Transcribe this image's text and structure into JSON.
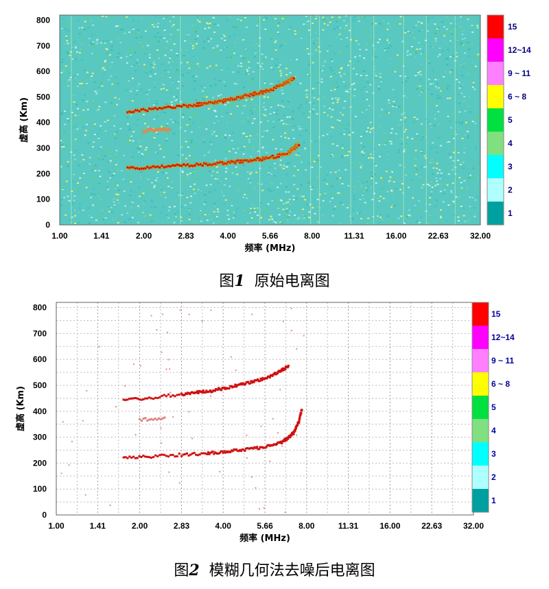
{
  "chart_data": [
    {
      "type": "heatmap",
      "panel": "original",
      "caption_prefix": "图",
      "caption_number": "1",
      "caption_title": "原始电离图",
      "xlabel": "频率 (MHz)",
      "ylabel": "虚高 (Km)",
      "x_ticks": [
        "1.00",
        "1.41",
        "2.00",
        "2.83",
        "4.00",
        "5.66",
        "8.00",
        "11.31",
        "16.00",
        "22.63",
        "32.00"
      ],
      "y_ticks": [
        "0",
        "100",
        "200",
        "300",
        "400",
        "500",
        "600",
        "700",
        "800"
      ],
      "xscale": "log2",
      "xlim": [
        1.0,
        32.0
      ],
      "ylim": [
        0,
        820
      ],
      "background": "noise",
      "grid": false,
      "legend_position": "right",
      "legend": [
        {
          "label": "15",
          "color": "#ff0000"
        },
        {
          "label": "12~14",
          "color": "#ff00ff"
        },
        {
          "label": "9 ~ 11",
          "color": "#ff80ff"
        },
        {
          "label": "6 ~ 8",
          "color": "#ffff00"
        },
        {
          "label": "5",
          "color": "#00e040"
        },
        {
          "label": "4",
          "color": "#80e080"
        },
        {
          "label": "3",
          "color": "#00ffff"
        },
        {
          "label": "2",
          "color": "#b0ffff"
        },
        {
          "label": "1",
          "color": "#00a0a0"
        }
      ],
      "traces": [
        {
          "name": "F1 trace",
          "points": [
            [
              1.75,
              222
            ],
            [
              2.2,
              225
            ],
            [
              2.83,
              232
            ],
            [
              3.5,
              238
            ],
            [
              4.0,
              243
            ],
            [
              4.6,
              250
            ],
            [
              5.3,
              258
            ],
            [
              6.0,
              268
            ],
            [
              6.6,
              283
            ],
            [
              6.9,
              300
            ],
            [
              7.2,
              318
            ]
          ]
        },
        {
          "name": "F2 trace",
          "points": [
            [
              1.75,
              442
            ],
            [
              2.2,
              452
            ],
            [
              2.83,
              465
            ],
            [
              3.2,
              472
            ],
            [
              3.6,
              478
            ],
            [
              4.0,
              488
            ],
            [
              4.5,
              500
            ],
            [
              5.0,
              512
            ],
            [
              5.6,
              525
            ],
            [
              6.2,
              545
            ],
            [
              6.6,
              562
            ],
            [
              6.9,
              575
            ]
          ]
        },
        {
          "name": "faint trace",
          "points": [
            [
              2.0,
              368
            ],
            [
              2.5,
              372
            ]
          ]
        }
      ]
    },
    {
      "type": "heatmap",
      "panel": "denoised",
      "caption_prefix": "图",
      "caption_number": "2",
      "caption_title": "模糊几何法去噪后电离图",
      "xlabel": "频率 (MHz)",
      "ylabel": "虚高 (Km)",
      "x_ticks": [
        "1.00",
        "1.41",
        "2.00",
        "2.83",
        "4.00",
        "5.66",
        "8.00",
        "11.31",
        "16.00",
        "22.63",
        "32.00"
      ],
      "y_ticks": [
        "0",
        "100",
        "200",
        "300",
        "400",
        "500",
        "600",
        "700",
        "800"
      ],
      "xscale": "log2",
      "xlim": [
        1.0,
        32.0
      ],
      "ylim": [
        0,
        820
      ],
      "background": "white",
      "grid": true,
      "legend_position": "right",
      "legend": [
        {
          "label": "15",
          "color": "#ff0000"
        },
        {
          "label": "12~14",
          "color": "#ff00ff"
        },
        {
          "label": "9 ~ 11",
          "color": "#ff80ff"
        },
        {
          "label": "6 ~ 8",
          "color": "#ffff00"
        },
        {
          "label": "5",
          "color": "#00e040"
        },
        {
          "label": "4",
          "color": "#80e080"
        },
        {
          "label": "3",
          "color": "#00ffff"
        },
        {
          "label": "2",
          "color": "#b0ffff"
        },
        {
          "label": "1",
          "color": "#00a0a0"
        }
      ],
      "traces": [
        {
          "name": "F1 trace",
          "points": [
            [
              1.75,
              222
            ],
            [
              2.2,
              225
            ],
            [
              2.83,
              232
            ],
            [
              3.5,
              238
            ],
            [
              4.0,
              243
            ],
            [
              4.6,
              250
            ],
            [
              5.3,
              258
            ],
            [
              6.0,
              268
            ],
            [
              6.6,
              283
            ],
            [
              6.9,
              300
            ],
            [
              7.2,
              318
            ],
            [
              7.5,
              360
            ],
            [
              7.7,
              410
            ]
          ]
        },
        {
          "name": "F2 trace",
          "points": [
            [
              1.75,
              442
            ],
            [
              2.2,
              452
            ],
            [
              2.83,
              465
            ],
            [
              3.2,
              472
            ],
            [
              3.6,
              478
            ],
            [
              4.0,
              488
            ],
            [
              4.5,
              500
            ],
            [
              5.0,
              512
            ],
            [
              5.6,
              525
            ],
            [
              6.2,
              545
            ],
            [
              6.6,
              562
            ],
            [
              6.9,
              575
            ]
          ]
        },
        {
          "name": "faint trace",
          "points": [
            [
              2.0,
              368
            ],
            [
              2.5,
              372
            ]
          ]
        }
      ]
    }
  ]
}
